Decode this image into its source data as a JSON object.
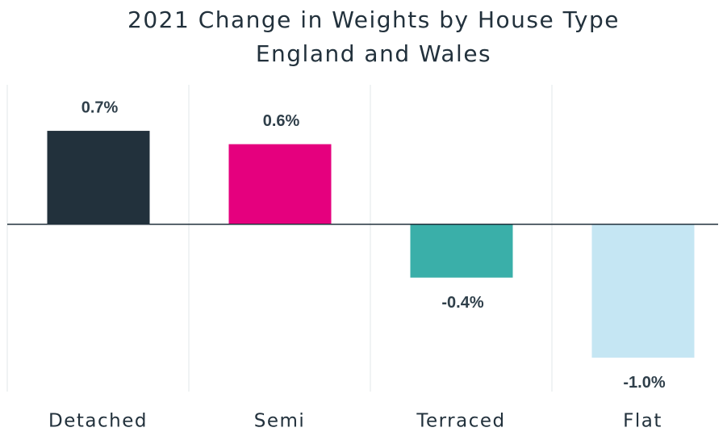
{
  "chart_data": {
    "type": "bar",
    "title": "2021 Change in Weights by House Type",
    "subtitle": "England and Wales",
    "categories": [
      "Detached",
      "Semi",
      "Terraced",
      "Flat"
    ],
    "values": [
      0.7,
      0.6,
      -0.4,
      -1.0
    ],
    "value_labels": [
      "0.7%",
      "0.6%",
      "-0.4%",
      "-1.0%"
    ],
    "colors": [
      "#22313c",
      "#e5007e",
      "#3aafa9",
      "#c5e6f3"
    ],
    "ylim": [
      -1.2,
      0.9
    ]
  }
}
